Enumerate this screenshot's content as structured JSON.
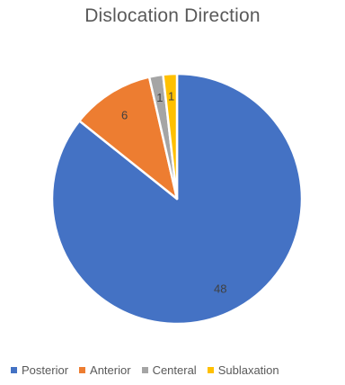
{
  "chart_data": {
    "type": "pie",
    "title": "Dislocation Direction",
    "categories": [
      "Posterior",
      "Anterior",
      "Centeral",
      "Sublaxation"
    ],
    "values": [
      48,
      6,
      1,
      1
    ],
    "colors": [
      "#4472C4",
      "#ED7D31",
      "#A5A5A5",
      "#FFC000"
    ],
    "data_labels": [
      "48",
      "6",
      "1",
      "1"
    ],
    "legend_position": "bottom"
  }
}
